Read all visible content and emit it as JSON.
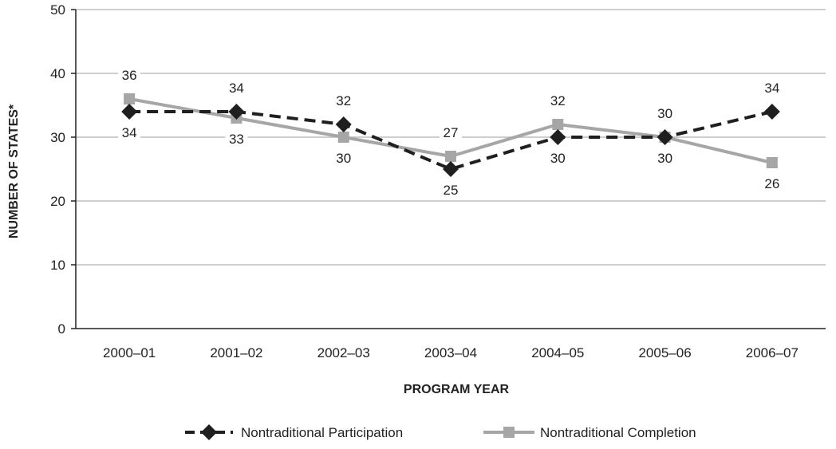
{
  "chart_data": {
    "type": "line",
    "title": "",
    "xlabel": "PROGRAM YEAR",
    "ylabel": "NUMBER OF STATES*",
    "ylim": [
      0,
      50
    ],
    "yticks": [
      0,
      10,
      20,
      30,
      40,
      50
    ],
    "categories": [
      "2000–01",
      "2001–02",
      "2002–03",
      "2003–04",
      "2004–05",
      "2005–06",
      "2006–07"
    ],
    "grid": true,
    "legend_position": "bottom",
    "series": [
      {
        "name": "Nontraditional Participation",
        "values": [
          34,
          34,
          32,
          25,
          30,
          30,
          34
        ],
        "color": "#1f1f1f",
        "line_style": "dashed",
        "marker": "diamond",
        "label_positions": [
          "below",
          "above",
          "above",
          "below",
          "below",
          "below",
          "above"
        ]
      },
      {
        "name": "Nontraditional Completion",
        "values": [
          36,
          33,
          30,
          27,
          32,
          30,
          26
        ],
        "color": "#a6a6a6",
        "line_style": "solid",
        "marker": "square",
        "label_positions": [
          "above",
          "below",
          "below",
          "above",
          "above",
          "above",
          "below"
        ]
      }
    ]
  }
}
